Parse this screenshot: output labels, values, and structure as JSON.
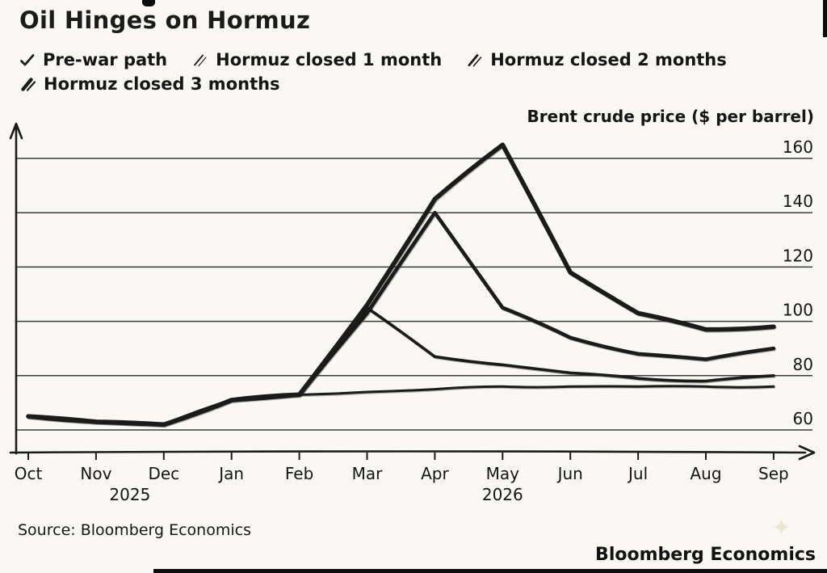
{
  "title": "Oil Hinges on Hormuz",
  "legend": [
    {
      "label": "Pre-war path",
      "icon": "check-icon"
    },
    {
      "label": "Hormuz closed 1 month",
      "icon": "pen-stroke-icon"
    },
    {
      "label": "Hormuz closed 2 months",
      "icon": "pen-stroke-icon"
    },
    {
      "label": "Hormuz closed 3 months",
      "icon": "pen-stroke-icon"
    }
  ],
  "source": "Source: Bloomberg Economics",
  "brand": "Bloomberg Economics",
  "colors": {
    "ink": "#1b1b1b",
    "background": "#f9f8f5"
  },
  "chart_data": {
    "type": "line",
    "title": "Oil Hinges on Hormuz",
    "ylabel": "Brent crude price ($ per barrel)",
    "x": [
      "Oct",
      "Nov",
      "Dec",
      "Jan",
      "Feb",
      "Mar",
      "Apr",
      "May",
      "Jun",
      "Jul",
      "Aug",
      "Sep"
    ],
    "year_labels": [
      {
        "x_index": 1.5,
        "label": "2025"
      },
      {
        "x_index": 7,
        "label": "2026"
      }
    ],
    "yticks": [
      60,
      80,
      100,
      120,
      140,
      160
    ],
    "ylim": [
      55,
      170
    ],
    "grid": true,
    "legend_position": "top",
    "series": [
      {
        "name": "Pre-war path",
        "values": [
          65,
          63,
          62,
          71,
          73,
          74,
          75,
          76,
          76,
          76,
          76,
          76
        ]
      },
      {
        "name": "Hormuz closed 1 month",
        "values": [
          65,
          63,
          62,
          71,
          73,
          105,
          87,
          84,
          81,
          79,
          78,
          80
        ]
      },
      {
        "name": "Hormuz closed 2 months",
        "values": [
          65,
          63,
          62,
          71,
          73,
          103,
          140,
          105,
          94,
          88,
          86,
          90
        ]
      },
      {
        "name": "Hormuz closed 3 months",
        "values": [
          65,
          63,
          62,
          71,
          73,
          106,
          145,
          165,
          118,
          103,
          97,
          98
        ]
      }
    ]
  }
}
